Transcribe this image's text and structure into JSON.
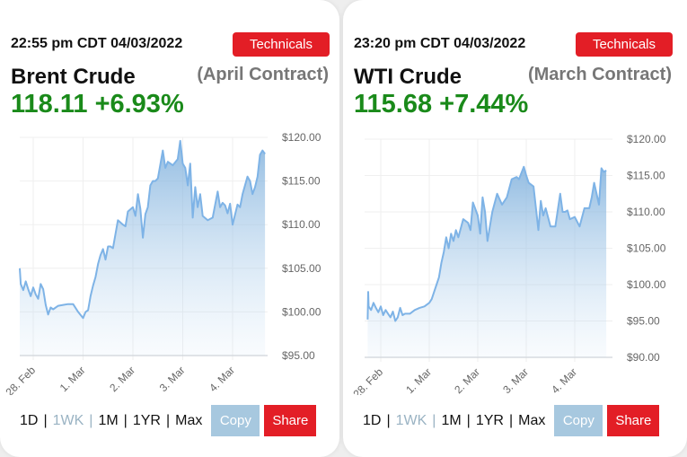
{
  "panels": [
    {
      "timestamp": "22:55 pm CDT 04/03/2022",
      "technicals_label": "Technicals",
      "name": "Brent Crude",
      "contract": "(April Contract)",
      "price": "118.11",
      "change": "+6.93%",
      "ranges": [
        "1D",
        "1WK",
        "1M",
        "1YR",
        "Max"
      ],
      "active_range": "1WK",
      "copy_label": "Copy",
      "share_label": "Share"
    },
    {
      "timestamp": "23:20 pm CDT 04/03/2022",
      "technicals_label": "Technicals",
      "name": "WTI Crude",
      "contract": "(March Contract)",
      "price": "115.68",
      "change": "+7.44%",
      "ranges": [
        "1D",
        "1WK",
        "1M",
        "1YR",
        "Max"
      ],
      "active_range": "1WK",
      "copy_label": "Copy",
      "share_label": "Share"
    }
  ],
  "colors": {
    "accent_red": "#e31e26",
    "price_green": "#1a8a1a",
    "line_blue": "#7eb3e6",
    "copy_blue": "#a7c8df"
  },
  "chart_data": [
    {
      "type": "area",
      "title": "Brent Crude (April Contract)",
      "xlabel": "",
      "ylabel": "",
      "x_ticks": [
        "28. Feb",
        "1. Mar",
        "2. Mar",
        "3. Mar",
        "4. Mar"
      ],
      "y_ticks": [
        "$95.00",
        "$100.00",
        "$105.00",
        "$110.00",
        "$115.00",
        "$120.00"
      ],
      "ylim": [
        95,
        120
      ],
      "grid": true,
      "series": [
        {
          "name": "Brent Crude",
          "x": [
            -0.27,
            -0.25,
            -0.2,
            -0.15,
            -0.1,
            -0.05,
            0.0,
            0.05,
            0.1,
            0.15,
            0.2,
            0.25,
            0.3,
            0.35,
            0.4,
            0.5,
            0.6,
            0.7,
            0.8,
            0.9,
            1.0,
            1.05,
            1.1,
            1.15,
            1.2,
            1.25,
            1.3,
            1.35,
            1.4,
            1.45,
            1.5,
            1.55,
            1.6,
            1.7,
            1.8,
            1.85,
            1.9,
            2.0,
            2.05,
            2.1,
            2.15,
            2.2,
            2.25,
            2.3,
            2.35,
            2.4,
            2.45,
            2.5,
            2.6,
            2.65,
            2.7,
            2.8,
            2.9,
            2.95,
            3.0,
            3.05,
            3.1,
            3.15,
            3.2,
            3.25,
            3.3,
            3.35,
            3.4,
            3.5,
            3.6,
            3.7,
            3.75,
            3.8,
            3.85,
            3.9,
            3.95,
            4.0,
            4.1,
            4.15,
            4.2,
            4.3,
            4.35,
            4.4,
            4.45,
            4.5,
            4.55,
            4.6,
            4.65
          ],
          "values": [
            105.0,
            103.2,
            102.5,
            103.5,
            102.6,
            101.8,
            102.8,
            102.0,
            101.5,
            103.2,
            102.6,
            100.8,
            99.7,
            100.5,
            100.3,
            100.7,
            100.8,
            100.9,
            100.9,
            100.0,
            99.3,
            100.0,
            100.2,
            101.8,
            103.0,
            104.0,
            105.5,
            106.5,
            107.2,
            106.0,
            107.5,
            107.5,
            107.3,
            110.5,
            110.0,
            109.8,
            111.5,
            112.0,
            111.0,
            113.5,
            111.8,
            108.5,
            111.2,
            112.0,
            114.5,
            115.0,
            115.0,
            115.3,
            118.5,
            116.5,
            117.2,
            116.8,
            117.5,
            119.6,
            117.0,
            116.5,
            114.5,
            117.0,
            110.8,
            114.3,
            112.0,
            113.5,
            111.0,
            110.5,
            110.8,
            113.8,
            112.0,
            112.5,
            112.2,
            111.3,
            112.4,
            110.0,
            112.3,
            112.0,
            113.5,
            115.5,
            115.0,
            113.5,
            114.3,
            115.5,
            118.0,
            118.5,
            118.1
          ]
        }
      ]
    },
    {
      "type": "area",
      "title": "WTI Crude (March Contract)",
      "xlabel": "",
      "ylabel": "",
      "x_ticks": [
        "28. Feb",
        "1. Mar",
        "2. Mar",
        "3. Mar",
        "4. Mar"
      ],
      "y_ticks": [
        "$90.00",
        "$95.00",
        "$100.00",
        "$105.00",
        "$110.00",
        "$115.00",
        "$120.00"
      ],
      "ylim": [
        90,
        120
      ],
      "grid": true,
      "series": [
        {
          "name": "WTI Crude",
          "x": [
            -0.27,
            -0.26,
            -0.25,
            -0.2,
            -0.15,
            -0.1,
            -0.05,
            0.0,
            0.05,
            0.1,
            0.15,
            0.2,
            0.25,
            0.3,
            0.35,
            0.4,
            0.45,
            0.5,
            0.6,
            0.7,
            0.8,
            0.9,
            1.0,
            1.05,
            1.1,
            1.15,
            1.2,
            1.25,
            1.3,
            1.35,
            1.4,
            1.45,
            1.5,
            1.55,
            1.6,
            1.7,
            1.8,
            1.85,
            1.9,
            2.0,
            2.05,
            2.1,
            2.15,
            2.2,
            2.3,
            2.4,
            2.5,
            2.6,
            2.7,
            2.8,
            2.85,
            2.95,
            3.0,
            3.05,
            3.15,
            3.25,
            3.3,
            3.35,
            3.4,
            3.5,
            3.6,
            3.7,
            3.75,
            3.8,
            3.85,
            3.9,
            4.0,
            4.1,
            4.2,
            4.3,
            4.35,
            4.4,
            4.5,
            4.55,
            4.6,
            4.65
          ],
          "values": [
            95.2,
            99.0,
            97.0,
            96.5,
            97.5,
            96.8,
            96.2,
            97.0,
            95.8,
            96.5,
            96.0,
            95.5,
            96.3,
            95.0,
            95.5,
            96.8,
            95.8,
            96.0,
            96.0,
            96.5,
            96.8,
            97.0,
            97.5,
            98.0,
            99.0,
            100.0,
            101.0,
            103.0,
            104.5,
            106.5,
            105.0,
            107.0,
            106.0,
            107.5,
            106.5,
            109.0,
            108.5,
            107.5,
            111.3,
            109.5,
            107.0,
            112.0,
            110.0,
            106.0,
            110.0,
            112.5,
            111.0,
            112.0,
            114.5,
            114.8,
            114.5,
            116.2,
            115.0,
            114.0,
            113.5,
            107.5,
            111.5,
            109.5,
            110.5,
            108.0,
            108.0,
            112.5,
            110.0,
            110.0,
            110.2,
            109.0,
            109.3,
            108.0,
            110.5,
            110.5,
            112.0,
            114.0,
            111.0,
            116.0,
            115.5,
            115.7
          ]
        }
      ]
    }
  ]
}
